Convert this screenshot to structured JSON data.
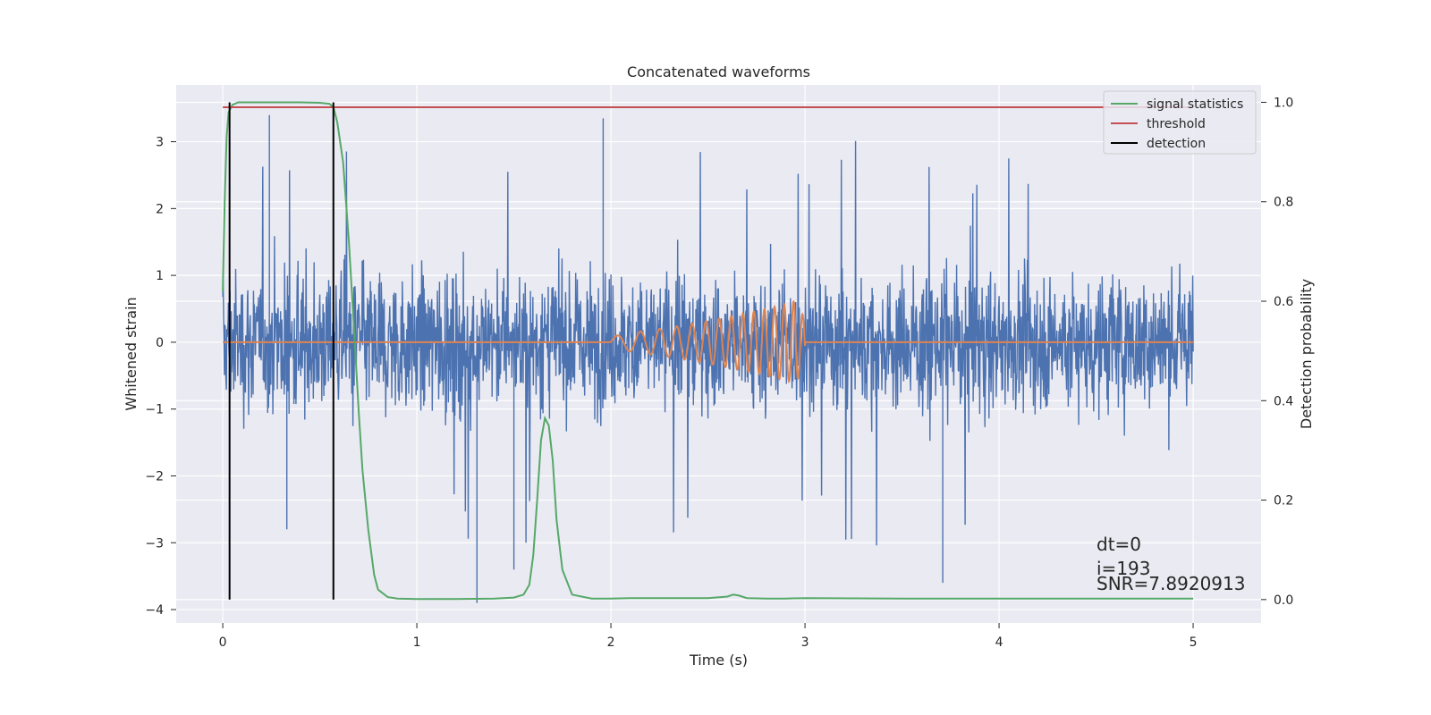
{
  "chart_data": {
    "type": "line",
    "title": "Concatenated waveforms",
    "xlabel": "Time (s)",
    "ylabel": "Whitened strain",
    "ylabel_right": "Detection probability",
    "xlim": [
      -0.24,
      5.35
    ],
    "ylim": [
      -4.2,
      3.85
    ],
    "ylim_right": [
      -0.047,
      1.035
    ],
    "x_ticks": [
      0,
      1,
      2,
      3,
      4,
      5
    ],
    "y_ticks": [
      -4,
      -3,
      -2,
      -1,
      0,
      1,
      2,
      3
    ],
    "y_ticks_right": [
      0.0,
      0.2,
      0.4,
      0.6,
      0.8,
      1.0
    ],
    "x_tick_labels": [
      "0",
      "1",
      "2",
      "3",
      "4",
      "5"
    ],
    "y_tick_labels": [
      "−4",
      "−3",
      "−2",
      "−1",
      "0",
      "1",
      "2",
      "3"
    ],
    "y_tick_labels_right": [
      "0.0",
      "0.2",
      "0.4",
      "0.6",
      "0.8",
      "1.0"
    ],
    "grid": true,
    "legend_position": "top-right",
    "colors": {
      "background": "#eaeaf2",
      "grid": "#ffffff",
      "strain": "#4c72b0",
      "template": "#dd8452",
      "signal_statistics": "#55a868",
      "threshold": "#c44e52",
      "detection": "#000000"
    },
    "series": [
      {
        "key": "strain",
        "axis": "left",
        "x_range": [
          0,
          5
        ],
        "samples": 2400,
        "noise_envelope": 1.45,
        "spike_max": 3.4,
        "spike_min": -3.9
      },
      {
        "key": "template",
        "axis": "left",
        "x": [
          0,
          1.99,
          2.0,
          2.1,
          2.2,
          2.3,
          2.4,
          2.5,
          2.6,
          2.7,
          2.8,
          2.9,
          2.95,
          3.0,
          3.01,
          5.0
        ],
        "amplitude": [
          0,
          0,
          0.08,
          0.14,
          0.18,
          0.22,
          0.27,
          0.32,
          0.38,
          0.44,
          0.5,
          0.57,
          0.62,
          0.35,
          0,
          0
        ],
        "frequency_start": 7,
        "frequency_end": 22
      },
      {
        "key": "signal_statistics",
        "name": "signal statistics",
        "axis": "right",
        "x": [
          0,
          0.01,
          0.02,
          0.03,
          0.05,
          0.08,
          0.12,
          0.2,
          0.3,
          0.4,
          0.5,
          0.55,
          0.57,
          0.59,
          0.62,
          0.65,
          0.68,
          0.7,
          0.72,
          0.75,
          0.78,
          0.8,
          0.85,
          0.9,
          1.0,
          1.2,
          1.4,
          1.5,
          1.55,
          1.58,
          1.6,
          1.62,
          1.64,
          1.66,
          1.68,
          1.7,
          1.72,
          1.75,
          1.8,
          1.9,
          2.0,
          2.1,
          2.5,
          2.6,
          2.63,
          2.66,
          2.7,
          2.8,
          2.9,
          3.0,
          3.5,
          4.0,
          4.5,
          5.0
        ],
        "y": [
          0.62,
          0.8,
          0.93,
          0.98,
          0.995,
          1.0,
          1.0,
          1.0,
          1.0,
          1.0,
          0.999,
          0.997,
          0.99,
          0.96,
          0.88,
          0.72,
          0.52,
          0.38,
          0.26,
          0.14,
          0.05,
          0.02,
          0.005,
          0.002,
          0.001,
          0.001,
          0.002,
          0.004,
          0.01,
          0.03,
          0.09,
          0.2,
          0.32,
          0.365,
          0.35,
          0.28,
          0.16,
          0.06,
          0.01,
          0.002,
          0.002,
          0.003,
          0.003,
          0.006,
          0.01,
          0.008,
          0.003,
          0.002,
          0.002,
          0.003,
          0.002,
          0.002,
          0.002,
          0.002
        ]
      },
      {
        "key": "threshold",
        "name": "threshold",
        "axis": "right",
        "x": [
          0,
          5
        ],
        "y": [
          0.99,
          0.99
        ]
      },
      {
        "key": "detection",
        "name": "detection",
        "axis": "right",
        "x": [
          0.035,
          0.57
        ],
        "y_range": [
          0.0,
          1.0
        ]
      }
    ],
    "legend_entries": [
      "signal statistics",
      "threshold",
      "detection"
    ],
    "annotations": [
      "dt=0",
      "i=193",
      "SNR=7.8920913"
    ]
  }
}
